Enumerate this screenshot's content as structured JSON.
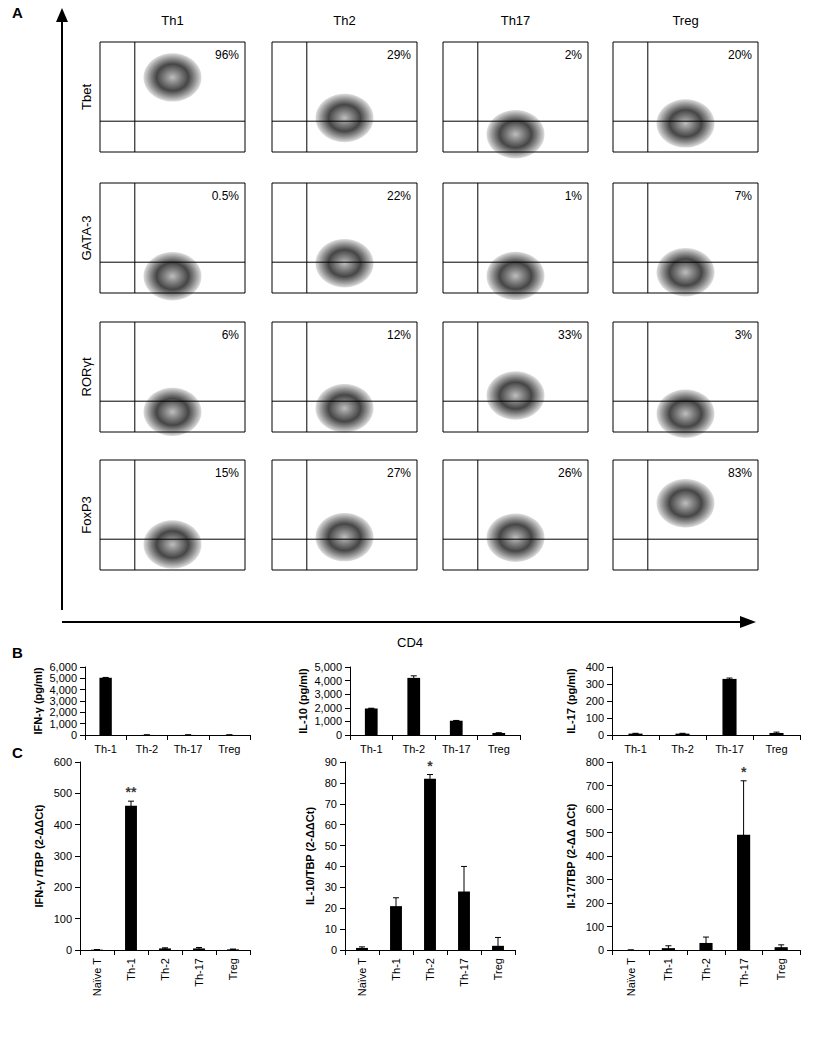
{
  "chart_data": [
    {
      "type": "flow_cytometry",
      "panel": "A",
      "columns": [
        "Th1",
        "Th2",
        "Th17",
        "Treg"
      ],
      "rows": [
        "Tbet",
        "GATA-3",
        "RORγt",
        "FoxP3"
      ],
      "x_label": "CD4",
      "values": [
        [
          96,
          29,
          2,
          20
        ],
        [
          0.5,
          22,
          1,
          7
        ],
        [
          6,
          12,
          33,
          3
        ],
        [
          15,
          27,
          26,
          83
        ]
      ],
      "value_labels": [
        [
          "96%",
          "29%",
          "2%",
          "20%"
        ],
        [
          "0.5%",
          "22%",
          "1%",
          "7%"
        ],
        [
          "6%",
          "12%",
          "33%",
          "3%"
        ],
        [
          "15%",
          "27%",
          "26%",
          "83%"
        ]
      ]
    },
    {
      "type": "bar",
      "panel": "B",
      "categories": [
        "Th-1",
        "Th-2",
        "Th-17",
        "Treg"
      ],
      "values": [
        5050,
        5,
        5,
        5
      ],
      "errors": [
        30,
        0,
        0,
        0
      ],
      "y_label": "IFN-γ (pg/ml)",
      "ylim": [
        0,
        6000
      ],
      "yticks": [
        0,
        1000,
        2000,
        3000,
        4000,
        5000,
        6000
      ],
      "color": "#000000",
      "grid": false
    },
    {
      "type": "bar",
      "categories": [
        "Th-1",
        "Th-2",
        "Th-17",
        "Treg"
      ],
      "values": [
        1950,
        4200,
        1050,
        150
      ],
      "errors": [
        20,
        150,
        20,
        10
      ],
      "y_label": "IL-10 (pg/ml)",
      "ylim": [
        0,
        5000
      ],
      "yticks": [
        0,
        1000,
        2000,
        3000,
        4000,
        5000
      ],
      "color": "#000000",
      "grid": false
    },
    {
      "type": "bar",
      "categories": [
        "Th-1",
        "Th-2",
        "Th-17",
        "Treg"
      ],
      "values": [
        8,
        8,
        330,
        12
      ],
      "errors": [
        2,
        2,
        5,
        5
      ],
      "y_label": "IL-17 (pg/ml)",
      "ylim": [
        0,
        400
      ],
      "yticks": [
        0,
        100,
        200,
        300,
        400
      ],
      "color": "#000000",
      "grid": false
    },
    {
      "type": "bar",
      "panel": "C",
      "categories": [
        "Naïve T",
        "Th-1",
        "Th-2",
        "Th-17",
        "Treg"
      ],
      "values": [
        1,
        460,
        5,
        5,
        2
      ],
      "errors": [
        0,
        15,
        2,
        3,
        1
      ],
      "y_label": "IFN-γ /TBP (2-ΔΔCt)",
      "ylim": [
        0,
        600
      ],
      "yticks": [
        0,
        100,
        200,
        300,
        400,
        500,
        600
      ],
      "annotations": [
        {
          "category": "Th-1",
          "text": "**"
        }
      ],
      "color": "#000000",
      "grid": false
    },
    {
      "type": "bar",
      "categories": [
        "Naïve T",
        "Th-1",
        "Th-2",
        "Th-17",
        "Treg"
      ],
      "values": [
        1,
        21,
        82,
        28,
        2
      ],
      "errors": [
        0.5,
        4,
        2,
        12,
        4
      ],
      "y_label": "IL-10/TBP (2-ΔΔCt)",
      "ylim": [
        0,
        90
      ],
      "yticks": [
        0,
        10,
        20,
        30,
        40,
        50,
        60,
        70,
        80,
        90
      ],
      "annotations": [
        {
          "category": "Th-2",
          "text": "*"
        }
      ],
      "color": "#000000",
      "grid": false
    },
    {
      "type": "bar",
      "categories": [
        "Naïve T",
        "Th-1",
        "Th-2",
        "Th-17",
        "Treg"
      ],
      "values": [
        0,
        8,
        30,
        490,
        12
      ],
      "errors": [
        0,
        10,
        25,
        230,
        10
      ],
      "y_label": "Il-17/TBP (2-ΔΔ ΔCt)",
      "ylim": [
        0,
        800
      ],
      "yticks": [
        0,
        100,
        200,
        300,
        400,
        500,
        600,
        700,
        800
      ],
      "annotations": [
        {
          "category": "Th-17",
          "text": "*"
        }
      ],
      "color": "#000000",
      "grid": false
    }
  ]
}
